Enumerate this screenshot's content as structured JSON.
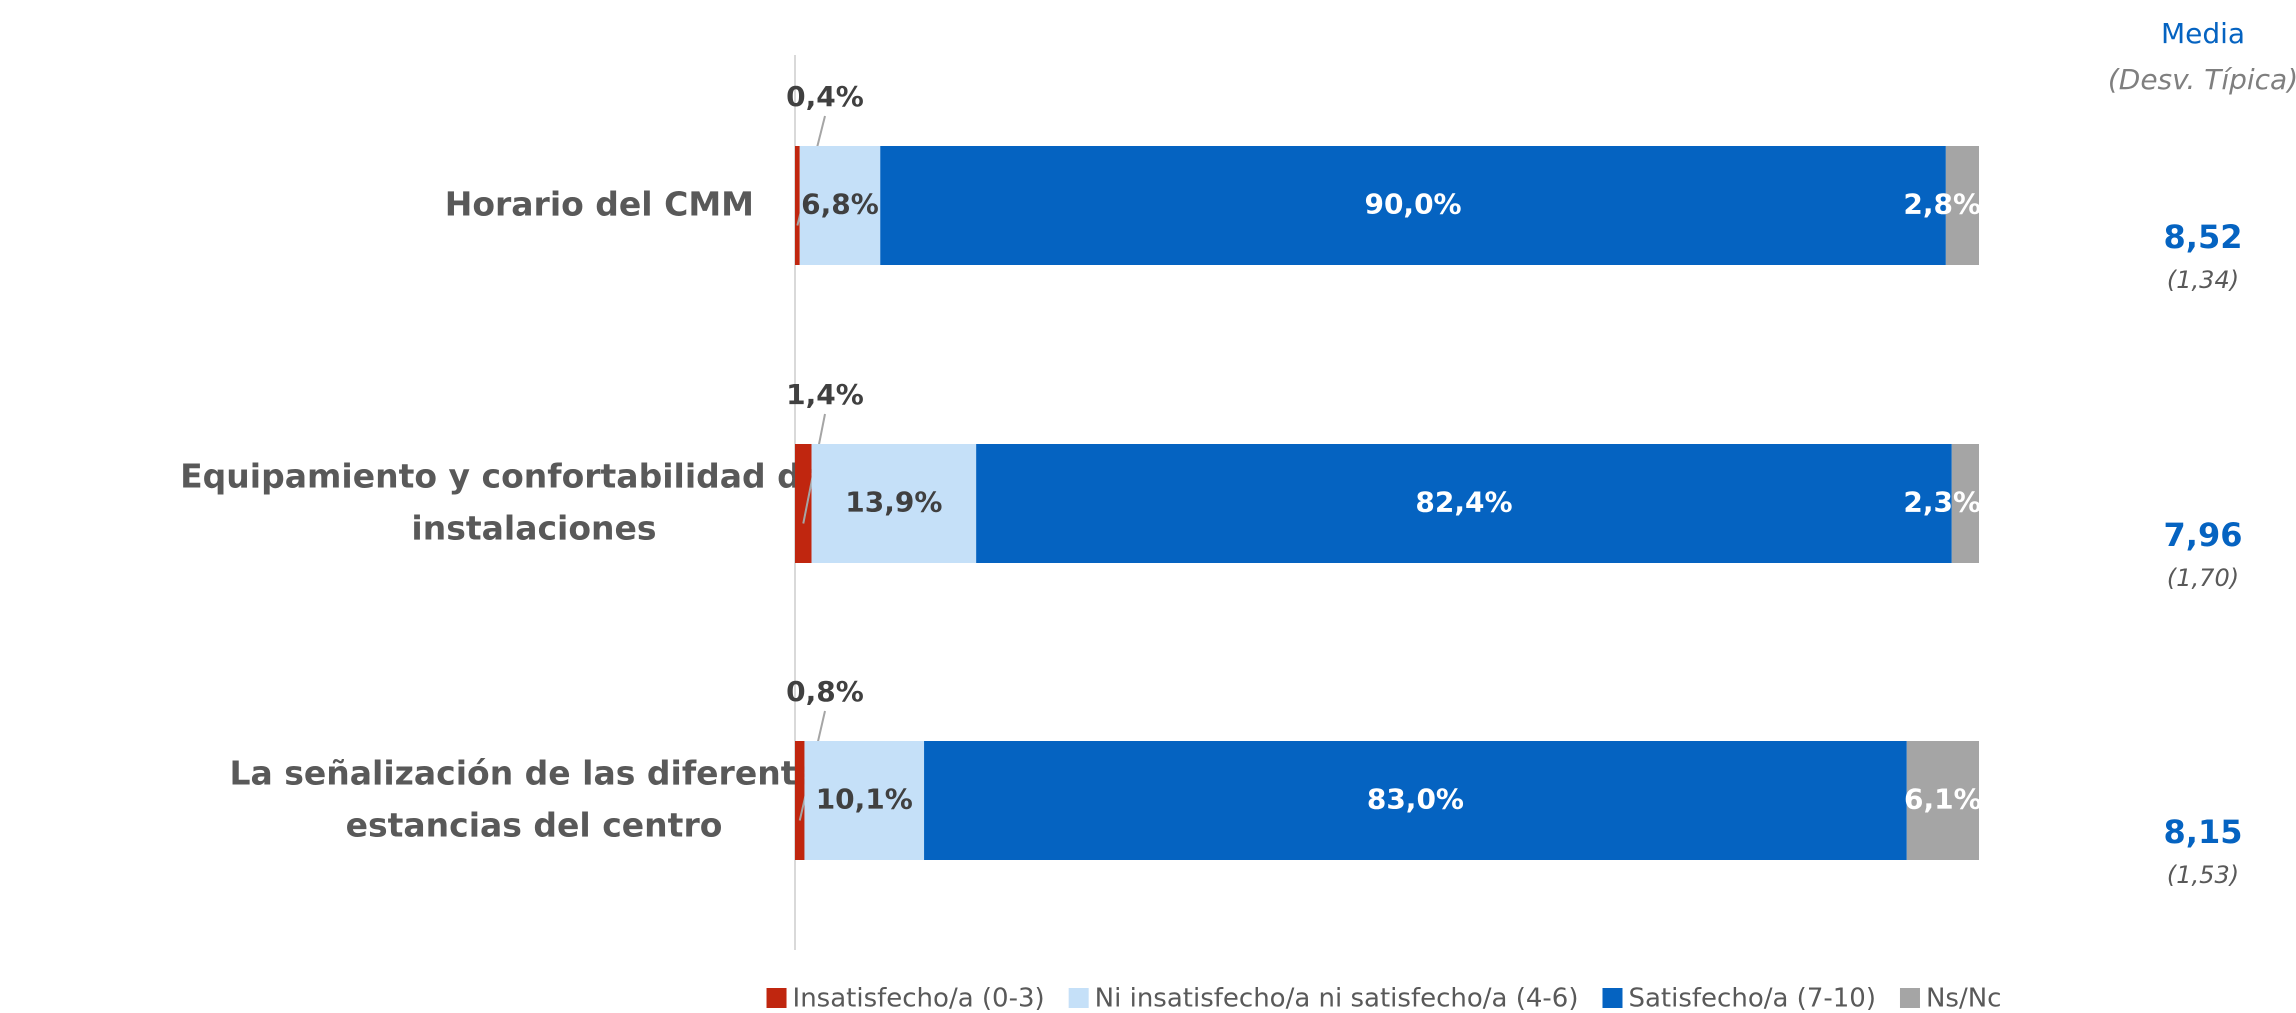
{
  "chart_data": {
    "type": "stacked-bar-horizontal",
    "categories": [
      "Horario del CMM",
      "Equipamiento y confortabilidad de las instalaciones",
      "La señalización de las diferentes estancias del centro"
    ],
    "xlim": [
      0,
      100
    ],
    "series": [
      {
        "name": "Insatisfecho/a (0-3)",
        "color": "#c0260f",
        "values": [
          0.4,
          1.4,
          0.8
        ],
        "value_labels": [
          "0,4%",
          "1,4%",
          "0,8%"
        ]
      },
      {
        "name": "Ni insatisfecho/a ni satisfecho/a (4-6)",
        "color": "#c5e0f8",
        "values": [
          6.8,
          13.9,
          10.1
        ],
        "value_labels": [
          "6,8%",
          "13,9%",
          "10,1%"
        ]
      },
      {
        "name": "Satisfecho/a (7-10)",
        "color": "#0563c1",
        "values": [
          90.0,
          82.4,
          83.0
        ],
        "value_labels": [
          "90,0%",
          "82,4%",
          "83,0%"
        ]
      },
      {
        "name": "Ns/Nc",
        "color": "#a5a5a5",
        "values": [
          2.8,
          2.3,
          6.1
        ],
        "value_labels": [
          "2,8%",
          "2,3%",
          "6,1%"
        ]
      }
    ],
    "mean_header": "Media",
    "sd_header": "(Desv. Típica)",
    "mean": {
      "values": [
        8.52,
        7.96,
        8.15
      ],
      "value_labels": [
        "8,52",
        "7,96",
        "8,15"
      ]
    },
    "sd": {
      "values": [
        1.34,
        1.7,
        1.53
      ],
      "value_labels": [
        "(1,34)",
        "(1,70)",
        "(1,53)"
      ]
    }
  }
}
